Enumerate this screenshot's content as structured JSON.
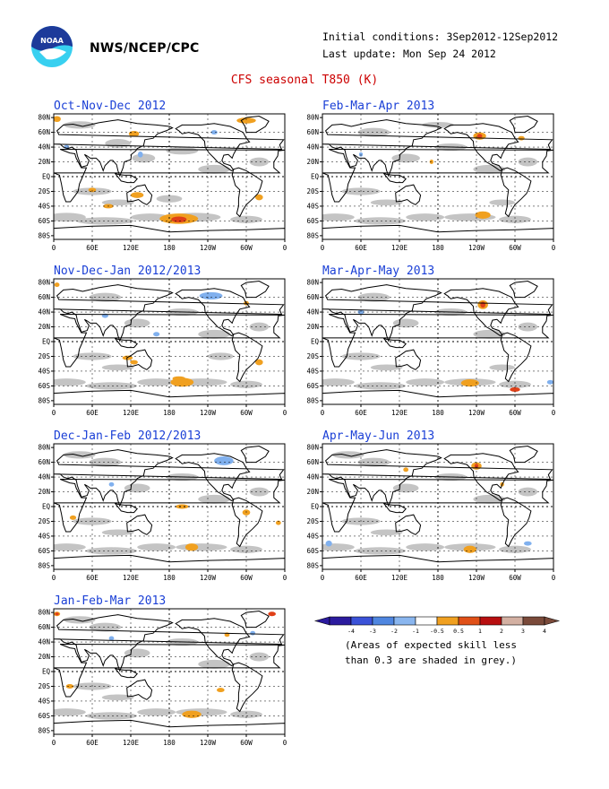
{
  "header": {
    "org": "NWS/NCEP/CPC",
    "initial_conditions": "Initial conditions: 3Sep2012-12Sep2012",
    "last_update": "Last update: Mon Sep 24 2012",
    "title": "CFS seasonal T850 (K)"
  },
  "lat_labels": [
    "80N",
    "60N",
    "40N",
    "20N",
    "EQ",
    "20S",
    "40S",
    "60S",
    "80S"
  ],
  "lon_labels": [
    "0",
    "60E",
    "120E",
    "180",
    "120W",
    "60W",
    "0"
  ],
  "panels": [
    {
      "id": "ond",
      "label": "Oct-Nov-Dec 2012"
    },
    {
      "id": "fma",
      "label": "Feb-Mar-Apr 2013"
    },
    {
      "id": "ndj",
      "label": "Nov-Dec-Jan 2012/2013"
    },
    {
      "id": "mam",
      "label": "Mar-Apr-May 2013"
    },
    {
      "id": "djf",
      "label": "Dec-Jan-Feb 2012/2013"
    },
    {
      "id": "amj",
      "label": "Apr-May-Jun 2013"
    },
    {
      "id": "jfm",
      "label": "Jan-Feb-Mar 2013"
    }
  ],
  "colorbar": {
    "ticks": [
      "-4",
      "-3",
      "-2",
      "-1",
      "-0.5",
      "0.5",
      "1",
      "2",
      "3",
      "4"
    ],
    "colors": [
      "#2b1b9e",
      "#3b52d8",
      "#4f86e0",
      "#8ab6ef",
      "#ffffff",
      "#f0a020",
      "#e05018",
      "#b80f10",
      "#d3b0a2",
      "#7a4a3a"
    ],
    "note_line1": "(Areas of expected skill less",
    "note_line2": "than 0.3 are shaded in grey.)"
  },
  "colors": {
    "grey_low_skill": "#c4c4c4",
    "orange": "#f0a020",
    "red": "#e04018",
    "light_blue": "#80b0ee",
    "title_red": "#cc0000",
    "panel_title_blue": "#1a3fd6",
    "logo_blue": "#1d3a9a",
    "logo_cyan": "#38d0f0"
  }
}
